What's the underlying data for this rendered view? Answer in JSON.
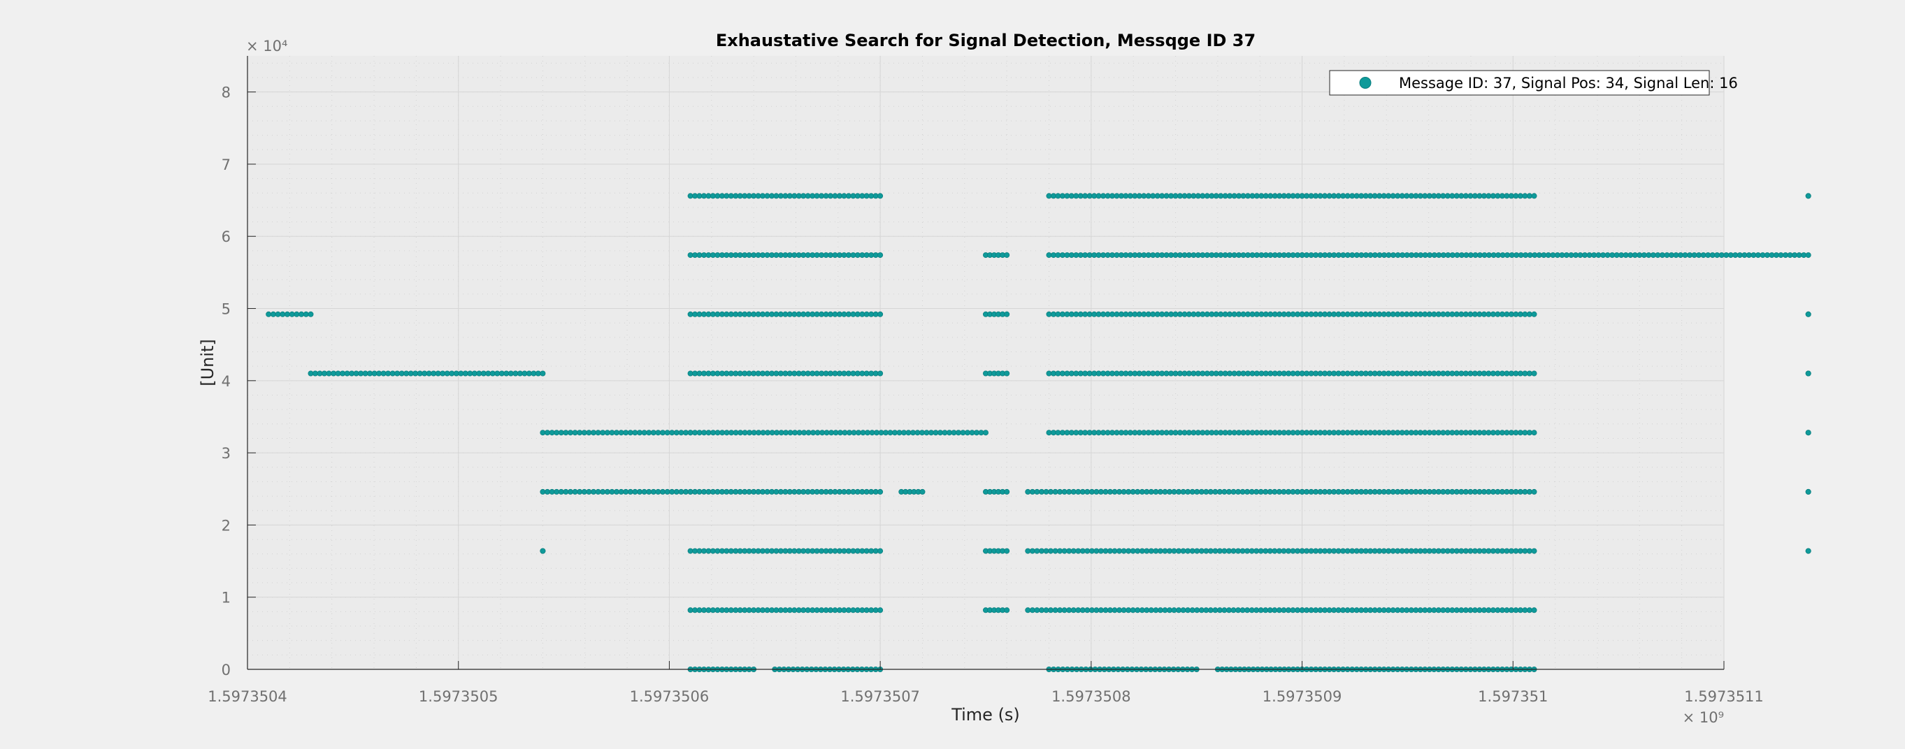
{
  "chart_data": {
    "type": "scatter",
    "title": "Exhaustative Search for Signal Detection, Messqge ID 37",
    "xlabel": "Time (s)",
    "ylabel": "[Unit]",
    "x_exponent_label": "× 10⁹",
    "y_exponent_label": "× 10⁴",
    "xlim": [
      1.5973504,
      1.5973511
    ],
    "ylim": [
      0,
      8.5
    ],
    "x_ticks": [
      1.5973504,
      1.5973505,
      1.5973506,
      1.5973507,
      1.5973508,
      1.5973509,
      1.597351,
      1.5973511
    ],
    "x_tick_labels": [
      "1.5973504",
      "1.5973505",
      "1.5973506",
      "1.5973507",
      "1.5973508",
      "1.5973509",
      "1.597351",
      "1.5973511"
    ],
    "y_ticks": [
      0,
      1,
      2,
      3,
      4,
      5,
      6,
      7,
      8
    ],
    "y_tick_labels": [
      "0",
      "1",
      "2",
      "3",
      "4",
      "5",
      "6",
      "7",
      "8"
    ],
    "grid": true,
    "legend_position": "top-right",
    "color": "#0f9a9a",
    "series": [
      {
        "name": "Message ID: 37, Signal Pos: 34, Signal Len: 16",
        "levels": [
          {
            "y": 0.0,
            "segments": [
              [
                1.59735061,
                1.59735064
              ],
              [
                1.59735065,
                1.5973507
              ],
              [
                1.59735078,
                1.59735085
              ],
              [
                1.59735086,
                1.5973509
              ],
              [
                1.5973509,
                1.59735101
              ]
            ]
          },
          {
            "y": 0.82,
            "segments": [
              [
                1.59735061,
                1.5973507
              ],
              [
                1.59735075,
                1.59735076
              ],
              [
                1.59735077,
                1.5973509
              ],
              [
                1.5973509,
                1.59735101
              ]
            ]
          },
          {
            "y": 1.64,
            "segments": [
              [
                1.59735054,
                1.59735054
              ],
              [
                1.59735061,
                1.5973507
              ],
              [
                1.59735075,
                1.59735076
              ],
              [
                1.59735077,
                1.5973509
              ],
              [
                1.5973509,
                1.59735101
              ],
              [
                1.59735114,
                1.59735114
              ]
            ]
          },
          {
            "y": 2.46,
            "segments": [
              [
                1.59735054,
                1.59735061
              ],
              [
                1.59735061,
                1.5973507
              ],
              [
                1.59735071,
                1.59735072
              ],
              [
                1.59735075,
                1.59735076
              ],
              [
                1.59735077,
                1.5973509
              ],
              [
                1.5973509,
                1.59735101
              ],
              [
                1.59735114,
                1.59735114
              ]
            ]
          },
          {
            "y": 3.28,
            "segments": [
              [
                1.59735054,
                1.59735061
              ],
              [
                1.59735061,
                1.59735075
              ],
              [
                1.59735078,
                1.5973509
              ],
              [
                1.5973509,
                1.59735101
              ],
              [
                1.59735114,
                1.59735114
              ]
            ]
          },
          {
            "y": 4.1,
            "segments": [
              [
                1.59735043,
                1.59735054
              ],
              [
                1.59735061,
                1.5973507
              ],
              [
                1.59735075,
                1.59735076
              ],
              [
                1.59735078,
                1.5973509
              ],
              [
                1.5973509,
                1.59735101
              ],
              [
                1.59735114,
                1.59735114
              ]
            ]
          },
          {
            "y": 4.92,
            "segments": [
              [
                1.59735041,
                1.59735043
              ],
              [
                1.59735061,
                1.5973507
              ],
              [
                1.59735075,
                1.59735076
              ],
              [
                1.59735078,
                1.5973509
              ],
              [
                1.5973509,
                1.59735101
              ],
              [
                1.59735114,
                1.59735114
              ]
            ]
          },
          {
            "y": 5.74,
            "segments": [
              [
                1.59735061,
                1.5973507
              ],
              [
                1.59735075,
                1.59735076
              ],
              [
                1.59735078,
                1.5973509
              ],
              [
                1.5973509,
                1.59735114
              ]
            ]
          },
          {
            "y": 6.56,
            "segments": [
              [
                1.59735061,
                1.5973507
              ],
              [
                1.59735078,
                1.5973509
              ],
              [
                1.5973509,
                1.59735101
              ],
              [
                1.59735114,
                1.59735114
              ]
            ]
          }
        ]
      }
    ]
  }
}
